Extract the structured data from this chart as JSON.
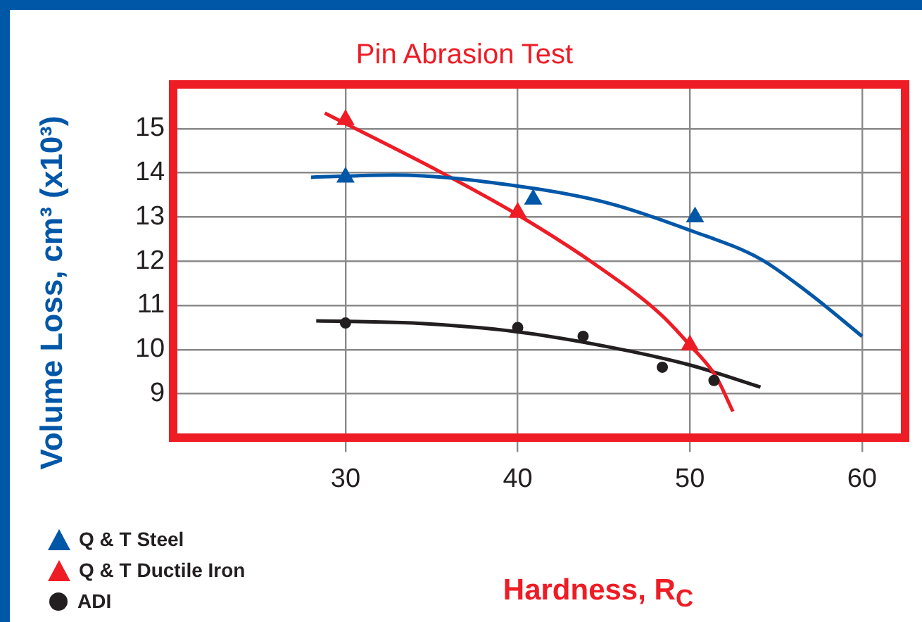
{
  "chart_data": {
    "type": "scatter",
    "title": "Pin Abrasion Test",
    "xlabel": "Hardness, R$_{C}$",
    "ylabel": "Volume Loss, cm³ (x10³)",
    "xlim": [
      20,
      62.5
    ],
    "xticks": [
      30,
      40,
      50,
      60
    ],
    "ylim": [
      8,
      16
    ],
    "yticks": [
      9,
      10,
      11,
      12,
      13,
      14,
      15
    ],
    "grid": true,
    "legend": "bottom left",
    "series": [
      {
        "name": "Q & T Steel",
        "marker": "triangle",
        "color": "#0057a8",
        "x": [
          30,
          40.9,
          50.3
        ],
        "values": [
          13.9,
          13.4,
          13.0
        ]
      },
      {
        "name": "Q & T Ductile Iron",
        "marker": "triangle",
        "color": "#ee1c25",
        "x": [
          30,
          40,
          50
        ],
        "values": [
          15.2,
          13.1,
          10.1
        ]
      },
      {
        "name": "ADI",
        "marker": "circle",
        "color": "#231f20",
        "x": [
          30,
          40,
          43.8,
          48.4,
          51.4
        ],
        "values": [
          10.6,
          10.5,
          10.3,
          9.6,
          9.3
        ]
      },
      {
        "type": "line",
        "marker": "none",
        "color": "#0057a8",
        "x": [
          28,
          32.8,
          40,
          45.4,
          50,
          54.1,
          57,
          60
        ],
        "values": [
          13.9,
          13.95,
          13.7,
          13.3,
          12.7,
          12.05,
          11.25,
          10.3
        ]
      },
      {
        "type": "line",
        "marker": "none",
        "color": "#ee1c25",
        "x": [
          28.8,
          35.6,
          40,
          44.6,
          48.3,
          50,
          51.5,
          52.5
        ],
        "values": [
          15.35,
          14,
          13.05,
          11.9,
          10.8,
          10.1,
          9.4,
          8.6
        ]
      },
      {
        "type": "line",
        "marker": "none",
        "color": "#231f20",
        "x": [
          28.3,
          33.9,
          40,
          45.4,
          50,
          54.1
        ],
        "values": [
          10.65,
          10.6,
          10.4,
          10.05,
          9.65,
          9.15
        ]
      }
    ]
  }
}
